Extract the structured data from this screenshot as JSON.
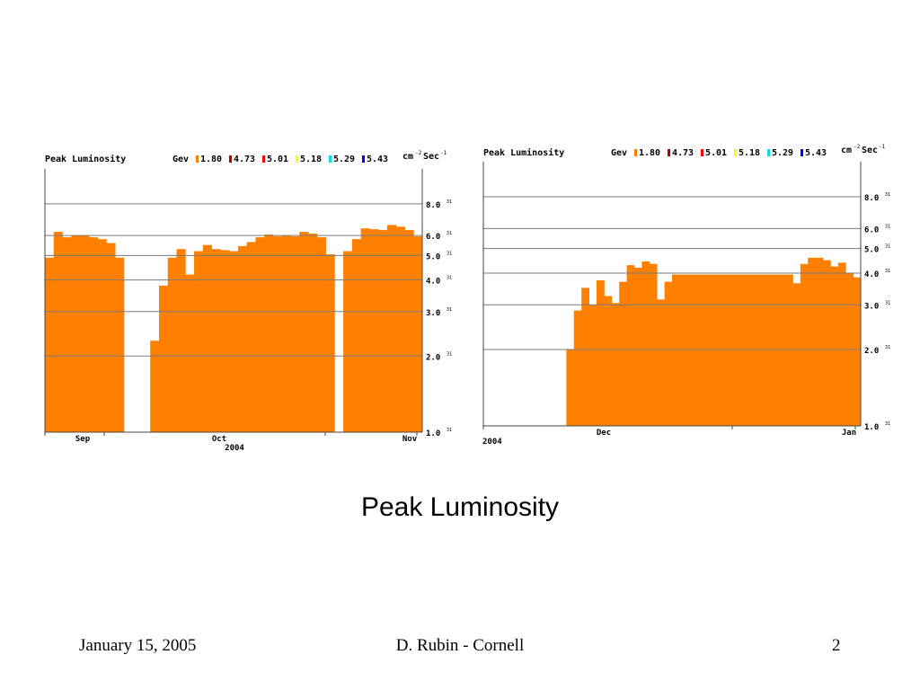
{
  "slide": {
    "title": "Peak Luminosity",
    "footer_left": "January 15, 2005",
    "footer_center": "D. Rubin - Cornell",
    "footer_right": "2"
  },
  "chart_data": [
    {
      "type": "bar",
      "title": "Peak Luminosity",
      "legend_label": "Gev",
      "legend": [
        {
          "name": "1.80",
          "color": "#ff8000"
        },
        {
          "name": "4.73",
          "color": "#b00000"
        },
        {
          "name": "5.01",
          "color": "#ff0000"
        },
        {
          "name": "5.18",
          "color": "#ffff00"
        },
        {
          "name": "5.29",
          "color": "#00e0e0"
        },
        {
          "name": "5.43",
          "color": "#0000ff"
        }
      ],
      "units": {
        "base": "cm",
        "base_exp": "-2",
        "rate": "Sec",
        "rate_exp": "-1"
      },
      "y_scale": "log",
      "ylim": [
        1.0,
        11.0
      ],
      "y_ticks": [
        {
          "mantissa": "8.0",
          "exp": "31",
          "value": 8.0
        },
        {
          "mantissa": "6.0",
          "exp": "31",
          "value": 6.0
        },
        {
          "mantissa": "5.0",
          "exp": "31",
          "value": 5.0
        },
        {
          "mantissa": "4.0",
          "exp": "31",
          "value": 4.0
        },
        {
          "mantissa": "3.0",
          "exp": "31",
          "value": 3.0
        },
        {
          "mantissa": "2.0",
          "exp": "31",
          "value": 2.0
        },
        {
          "mantissa": "1.0",
          "exp": "31",
          "value": 1.0
        }
      ],
      "x_labels": [
        "Sep",
        "Oct",
        "Nov"
      ],
      "year_label": "2004",
      "bar_color": "#ff8000",
      "values": [
        4.9,
        6.2,
        5.9,
        6.0,
        6.0,
        5.9,
        5.8,
        5.6,
        4.9,
        null,
        null,
        null,
        2.3,
        3.8,
        4.9,
        5.3,
        4.2,
        5.2,
        5.5,
        5.3,
        5.25,
        5.2,
        5.45,
        5.65,
        5.9,
        6.05,
        5.95,
        6.0,
        5.95,
        6.2,
        6.1,
        5.9,
        5.05,
        null,
        5.2,
        5.8,
        6.4,
        6.35,
        6.3,
        6.6,
        6.5,
        6.3,
        5.95
      ]
    },
    {
      "type": "bar",
      "title": "Peak Luminosity",
      "legend_label": "Gev",
      "legend": [
        {
          "name": "1.80",
          "color": "#ff8000"
        },
        {
          "name": "4.73",
          "color": "#b00000"
        },
        {
          "name": "5.01",
          "color": "#ff0000"
        },
        {
          "name": "5.18",
          "color": "#ffff00"
        },
        {
          "name": "5.29",
          "color": "#00e0e0"
        },
        {
          "name": "5.43",
          "color": "#0000ff"
        }
      ],
      "units": {
        "base": "cm",
        "base_exp": "-2",
        "rate": "Sec",
        "rate_exp": "-1"
      },
      "y_scale": "log",
      "ylim": [
        1.0,
        11.0
      ],
      "y_ticks": [
        {
          "mantissa": "8.0",
          "exp": "31",
          "value": 8.0
        },
        {
          "mantissa": "6.0",
          "exp": "31",
          "value": 6.0
        },
        {
          "mantissa": "5.0",
          "exp": "31",
          "value": 5.0
        },
        {
          "mantissa": "4.0",
          "exp": "31",
          "value": 4.0
        },
        {
          "mantissa": "3.0",
          "exp": "31",
          "value": 3.0
        },
        {
          "mantissa": "2.0",
          "exp": "31",
          "value": 2.0
        },
        {
          "mantissa": "1.0",
          "exp": "31",
          "value": 1.0
        }
      ],
      "x_labels": [
        "Dec",
        "Jan"
      ],
      "year_label": "2004",
      "bar_color": "#ff8000",
      "values": [
        null,
        null,
        null,
        null,
        null,
        null,
        null,
        null,
        null,
        null,
        null,
        2.0,
        2.85,
        3.5,
        3.0,
        3.75,
        3.25,
        3.05,
        3.7,
        4.3,
        4.2,
        4.45,
        4.35,
        3.15,
        3.7,
        3.95,
        3.95,
        3.95,
        3.95,
        3.95,
        3.95,
        3.95,
        3.95,
        3.95,
        3.95,
        3.95,
        3.95,
        3.95,
        3.95,
        3.95,
        3.95,
        3.65,
        4.35,
        4.6,
        4.6,
        4.5,
        4.25,
        4.4,
        4.0,
        3.85
      ]
    }
  ]
}
